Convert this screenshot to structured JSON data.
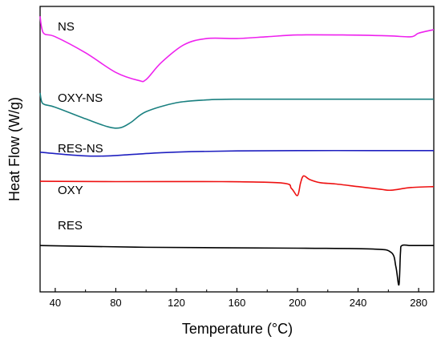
{
  "chart_data": {
    "type": "line",
    "title": "",
    "xlabel": "Temperature (°C)",
    "ylabel": "Heat Flow (W/g)",
    "xlim": [
      30,
      290
    ],
    "x_ticks": [
      40,
      80,
      120,
      160,
      200,
      240,
      280
    ],
    "y_ticks_labeled": false,
    "grid": false,
    "legend": "none (inline labels)",
    "series": [
      {
        "name": "NS",
        "color": "#ee22ee",
        "x": [
          30,
          31,
          33,
          40,
          60,
          80,
          95,
          100,
          110,
          125,
          140,
          160,
          180,
          200,
          230,
          260,
          275,
          280,
          290
        ],
        "y": [
          0.995,
          0.932,
          0.895,
          0.88,
          0.79,
          0.68,
          0.635,
          0.64,
          0.735,
          0.835,
          0.87,
          0.87,
          0.88,
          0.89,
          0.89,
          0.885,
          0.88,
          0.9,
          0.92
        ]
      },
      {
        "name": "OXY-NS",
        "color": "#1a8080",
        "x": [
          30,
          31,
          33,
          40,
          60,
          75,
          83,
          90,
          100,
          120,
          140,
          160,
          200,
          260,
          290
        ],
        "y": [
          0.565,
          0.517,
          0.5,
          0.485,
          0.42,
          0.375,
          0.37,
          0.4,
          0.46,
          0.51,
          0.526,
          0.53,
          0.53,
          0.53,
          0.53
        ]
      },
      {
        "name": "RES-NS",
        "color": "#1f20c0",
        "x": [
          30,
          40,
          60,
          75,
          90,
          110,
          130,
          160,
          200,
          250,
          290
        ],
        "y": [
          0.233,
          0.225,
          0.212,
          0.212,
          0.22,
          0.23,
          0.236,
          0.24,
          0.242,
          0.242,
          0.242
        ]
      },
      {
        "name": "OXY",
        "color": "#ee1111",
        "x": [
          30,
          80,
          150,
          190,
          196,
          200,
          202,
          204,
          208,
          215,
          225,
          240,
          255,
          262,
          275,
          290
        ],
        "y": [
          0.07,
          0.068,
          0.068,
          0.06,
          0.03,
          -0.01,
          0.06,
          0.1,
          0.08,
          0.062,
          0.055,
          0.04,
          0.025,
          0.02,
          0.035,
          0.04
        ]
      },
      {
        "name": "RES",
        "color": "#000000",
        "x": [
          30,
          100,
          200,
          250,
          262,
          265,
          267,
          268,
          269,
          275,
          290
        ],
        "y": [
          -0.29,
          -0.3,
          -0.305,
          -0.31,
          -0.33,
          -0.41,
          -0.51,
          -0.33,
          -0.29,
          -0.29,
          -0.29
        ]
      }
    ]
  }
}
